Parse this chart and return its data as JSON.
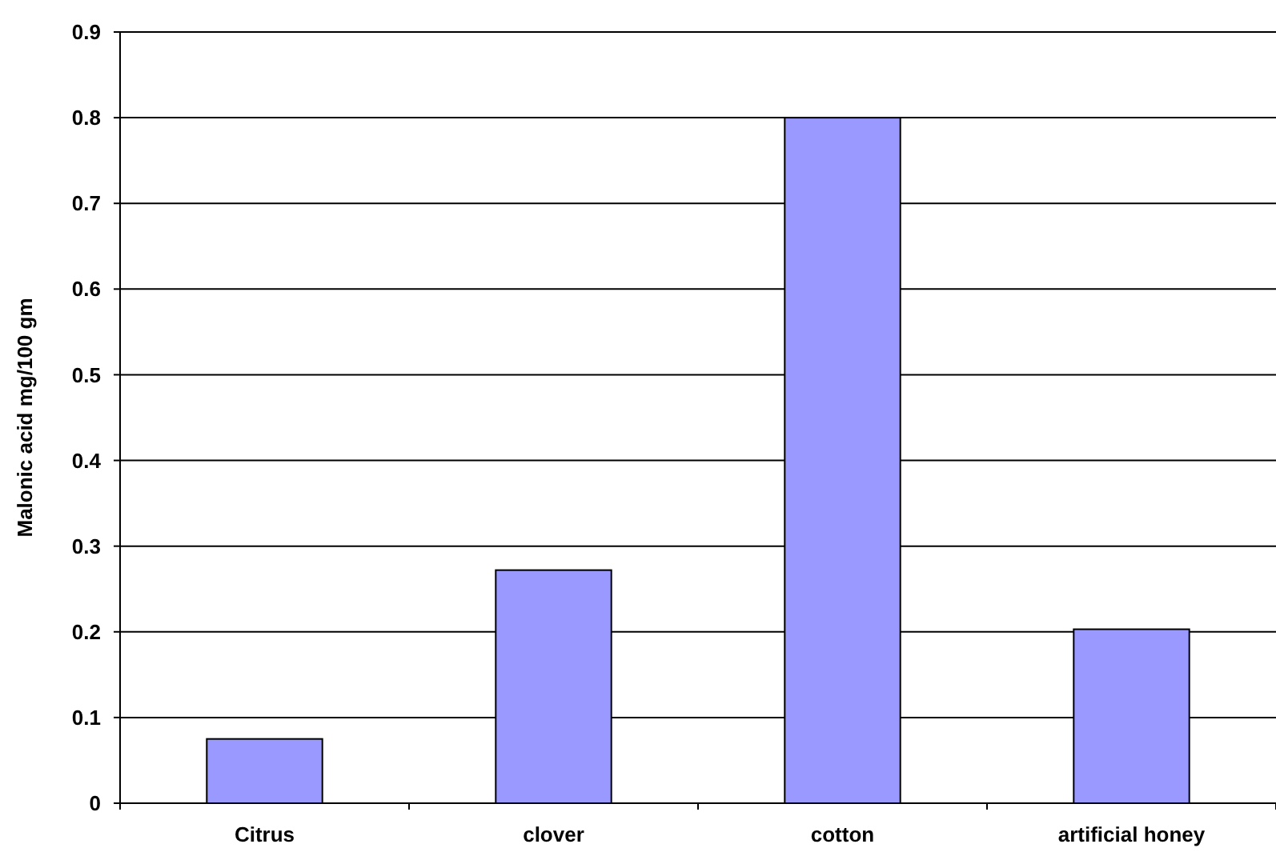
{
  "chart_data": {
    "type": "bar",
    "ylabel": "Malonic acid mg/100 gm",
    "categories": [
      "Citrus",
      "clover",
      "cotton",
      "artificial honey"
    ],
    "values": [
      0.075,
      0.272,
      0.8,
      0.203
    ],
    "color": "#9999ff",
    "ylim": [
      0,
      0.9
    ],
    "yticks": [
      0,
      0.1,
      0.2,
      0.3,
      0.4,
      0.5,
      0.6,
      0.7,
      0.8,
      0.9
    ],
    "grid": "y"
  }
}
